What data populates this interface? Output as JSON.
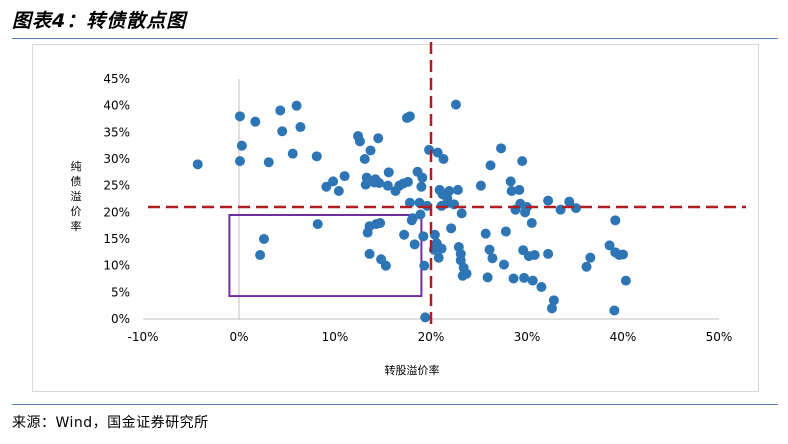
{
  "header": {
    "title": "图表4：转债散点图"
  },
  "footer": {
    "source": "来源：Wind，国金证券研究所"
  },
  "chart_data": {
    "type": "scatter",
    "xlabel": "转股溢价率",
    "ylabel": "纯债溢价率",
    "xlim": [
      -0.1,
      0.5
    ],
    "ylim": [
      0.0,
      0.45
    ],
    "x_tick_labels": [
      "-10%",
      "0%",
      "10%",
      "20%",
      "30%",
      "40%",
      "50%"
    ],
    "y_tick_labels": [
      "0%",
      "5%",
      "10%",
      "15%",
      "20%",
      "25%",
      "30%",
      "35%",
      "40%",
      "45%"
    ],
    "colors": {
      "points": "#2e75b6",
      "reference_lines": "#b01e23",
      "highlight_box": "#7030a0",
      "zero_axis": "#bfbfbf"
    },
    "reference_lines": {
      "x": 0.2,
      "y": 0.21
    },
    "highlight_box": {
      "x0": -0.01,
      "x1": 0.19,
      "y0": 0.043,
      "y1": 0.195
    },
    "points": [
      [
        -0.043,
        0.29
      ],
      [
        0.001,
        0.38
      ],
      [
        0.001,
        0.296
      ],
      [
        0.003,
        0.325
      ],
      [
        0.017,
        0.37
      ],
      [
        0.022,
        0.12
      ],
      [
        0.026,
        0.15
      ],
      [
        0.031,
        0.294
      ],
      [
        0.043,
        0.391
      ],
      [
        0.045,
        0.352
      ],
      [
        0.056,
        0.31
      ],
      [
        0.06,
        0.4
      ],
      [
        0.064,
        0.36
      ],
      [
        0.081,
        0.305
      ],
      [
        0.082,
        0.178
      ],
      [
        0.091,
        0.248
      ],
      [
        0.098,
        0.258
      ],
      [
        0.104,
        0.24
      ],
      [
        0.11,
        0.268
      ],
      [
        0.124,
        0.343
      ],
      [
        0.126,
        0.333
      ],
      [
        0.131,
        0.3
      ],
      [
        0.132,
        0.252
      ],
      [
        0.133,
        0.265
      ],
      [
        0.134,
        0.162
      ],
      [
        0.136,
        0.174
      ],
      [
        0.136,
        0.122
      ],
      [
        0.137,
        0.316
      ],
      [
        0.141,
        0.256
      ],
      [
        0.142,
        0.262
      ],
      [
        0.143,
        0.178
      ],
      [
        0.145,
        0.339
      ],
      [
        0.146,
        0.255
      ],
      [
        0.147,
        0.18
      ],
      [
        0.148,
        0.112
      ],
      [
        0.153,
        0.1
      ],
      [
        0.155,
        0.25
      ],
      [
        0.156,
        0.275
      ],
      [
        0.163,
        0.24
      ],
      [
        0.167,
        0.25
      ],
      [
        0.171,
        0.254
      ],
      [
        0.172,
        0.158
      ],
      [
        0.175,
        0.377
      ],
      [
        0.176,
        0.257
      ],
      [
        0.178,
        0.38
      ],
      [
        0.178,
        0.218
      ],
      [
        0.18,
        0.185
      ],
      [
        0.181,
        0.189
      ],
      [
        0.183,
        0.14
      ],
      [
        0.186,
        0.276
      ],
      [
        0.188,
        0.218
      ],
      [
        0.189,
        0.196
      ],
      [
        0.19,
        0.248
      ],
      [
        0.191,
        0.265
      ],
      [
        0.192,
        0.155
      ],
      [
        0.193,
        0.1
      ],
      [
        0.194,
        0.003
      ],
      [
        0.196,
        0.212
      ],
      [
        0.198,
        0.317
      ],
      [
        0.203,
        0.13
      ],
      [
        0.204,
        0.158
      ],
      [
        0.206,
        0.142
      ],
      [
        0.207,
        0.312
      ],
      [
        0.208,
        0.115
      ],
      [
        0.209,
        0.242
      ],
      [
        0.211,
        0.212
      ],
      [
        0.211,
        0.132
      ],
      [
        0.212,
        0.234
      ],
      [
        0.213,
        0.3
      ],
      [
        0.217,
        0.226
      ],
      [
        0.218,
        0.218
      ],
      [
        0.219,
        0.24
      ],
      [
        0.221,
        0.17
      ],
      [
        0.224,
        0.215
      ],
      [
        0.226,
        0.402
      ],
      [
        0.228,
        0.242
      ],
      [
        0.229,
        0.135
      ],
      [
        0.231,
        0.122
      ],
      [
        0.231,
        0.11
      ],
      [
        0.232,
        0.198
      ],
      [
        0.233,
        0.081
      ],
      [
        0.234,
        0.096
      ],
      [
        0.237,
        0.085
      ],
      [
        0.252,
        0.25
      ],
      [
        0.257,
        0.16
      ],
      [
        0.259,
        0.078
      ],
      [
        0.261,
        0.13
      ],
      [
        0.262,
        0.288
      ],
      [
        0.264,
        0.114
      ],
      [
        0.273,
        0.32
      ],
      [
        0.276,
        0.102
      ],
      [
        0.278,
        0.164
      ],
      [
        0.283,
        0.258
      ],
      [
        0.284,
        0.24
      ],
      [
        0.286,
        0.076
      ],
      [
        0.288,
        0.205
      ],
      [
        0.292,
        0.242
      ],
      [
        0.293,
        0.216
      ],
      [
        0.295,
        0.296
      ],
      [
        0.296,
        0.129
      ],
      [
        0.297,
        0.077
      ],
      [
        0.298,
        0.2
      ],
      [
        0.3,
        0.21
      ],
      [
        0.302,
        0.118
      ],
      [
        0.305,
        0.18
      ],
      [
        0.306,
        0.072
      ],
      [
        0.308,
        0.12
      ],
      [
        0.315,
        0.06
      ],
      [
        0.322,
        0.222
      ],
      [
        0.322,
        0.122
      ],
      [
        0.326,
        0.02
      ],
      [
        0.328,
        0.035
      ],
      [
        0.335,
        0.205
      ],
      [
        0.344,
        0.22
      ],
      [
        0.351,
        0.208
      ],
      [
        0.362,
        0.098
      ],
      [
        0.366,
        0.115
      ],
      [
        0.386,
        0.138
      ],
      [
        0.391,
        0.016
      ],
      [
        0.392,
        0.185
      ],
      [
        0.392,
        0.125
      ],
      [
        0.396,
        0.12
      ],
      [
        0.4,
        0.121
      ],
      [
        0.403,
        0.072
      ]
    ]
  }
}
